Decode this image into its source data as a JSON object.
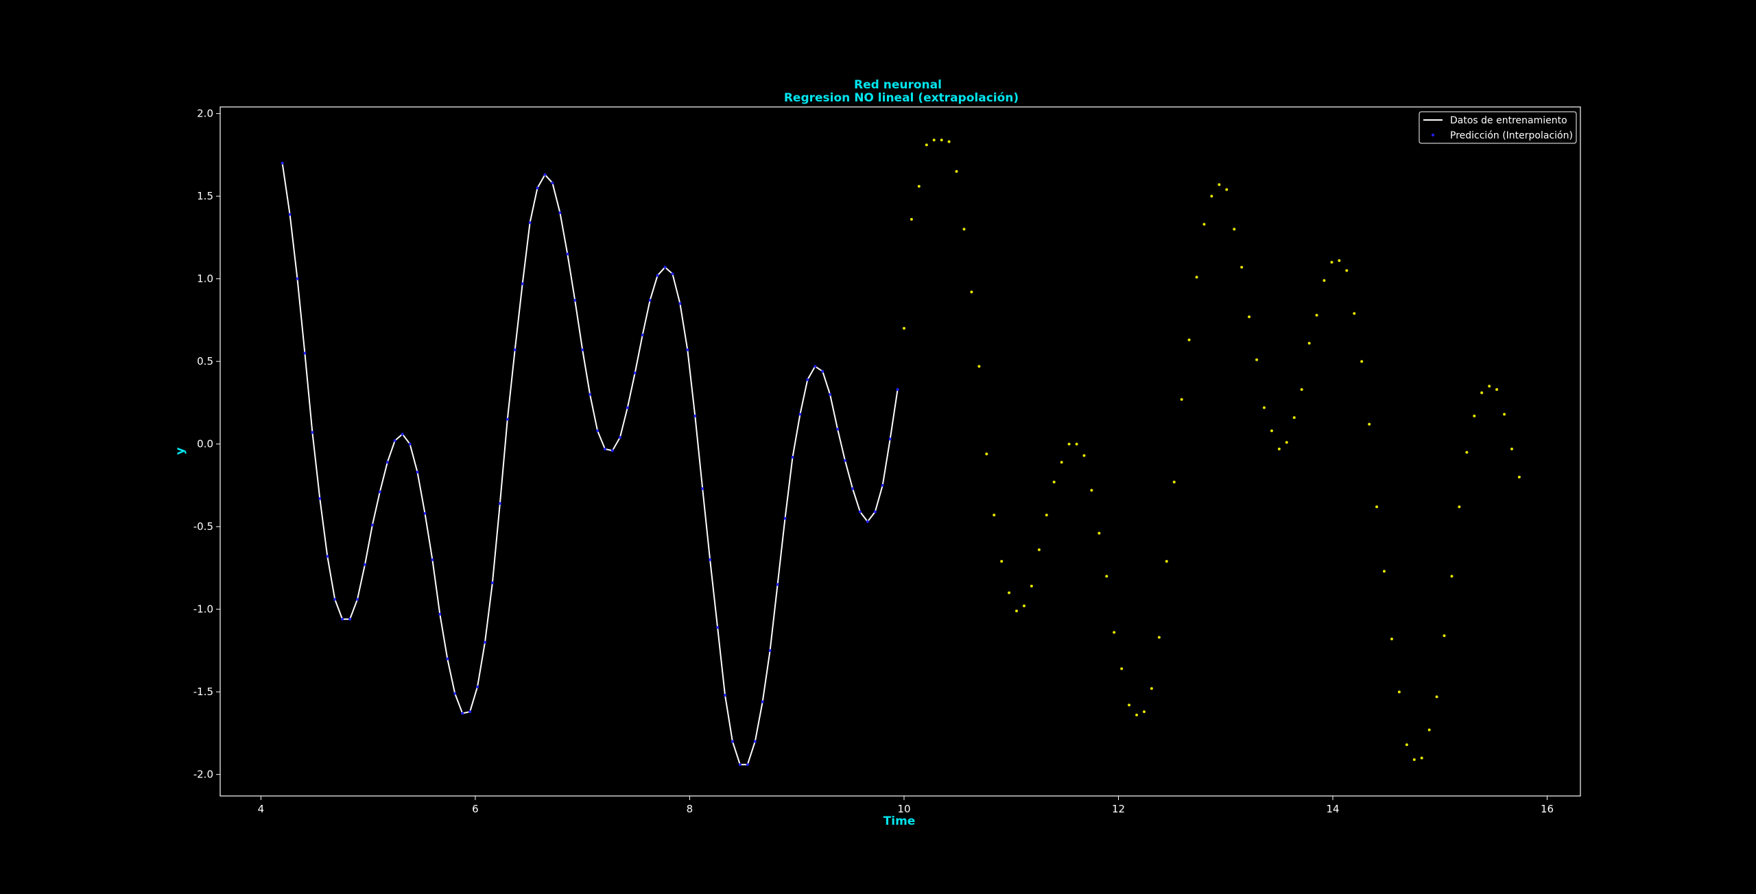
{
  "chart_data": {
    "type": "line",
    "title": "Red neuronal",
    "subtitle": "Regresion NO lineal (extrapolación)",
    "xlabel": "Time",
    "ylabel": "y",
    "xlim": [
      3.62,
      16.31
    ],
    "ylim": [
      -2.13,
      2.04
    ],
    "xticks": [
      4,
      6,
      8,
      10,
      12,
      14,
      16
    ],
    "yticks": [
      2.0,
      1.5,
      1.0,
      0.5,
      0.0,
      -0.5,
      -1.0,
      -1.5,
      -2.0
    ],
    "grid": false,
    "legend_position": "top-right",
    "series": [
      {
        "name": "Datos de entrenamiento",
        "kind": "line",
        "color": "#ffffff",
        "x": [
          4.2,
          4.27,
          4.34,
          4.41,
          4.48,
          4.55,
          4.62,
          4.69,
          4.76,
          4.83,
          4.9,
          4.97,
          5.04,
          5.11,
          5.18,
          5.25,
          5.32,
          5.39,
          5.46,
          5.53,
          5.6,
          5.67,
          5.74,
          5.81,
          5.88,
          5.95,
          6.02,
          6.09,
          6.16,
          6.23,
          6.3,
          6.37,
          6.44,
          6.51,
          6.58,
          6.65,
          6.72,
          6.79,
          6.86,
          6.93,
          7.0,
          7.07,
          7.14,
          7.21,
          7.28,
          7.35,
          7.42,
          7.49,
          7.56,
          7.63,
          7.7,
          7.77,
          7.84,
          7.91,
          7.98,
          8.05,
          8.12,
          8.19,
          8.26,
          8.33,
          8.4,
          8.47,
          8.54,
          8.61,
          8.68,
          8.75,
          8.82,
          8.89,
          8.96,
          9.03,
          9.1,
          9.17,
          9.24,
          9.31,
          9.38,
          9.45,
          9.52,
          9.59,
          9.66,
          9.73,
          9.8,
          9.87,
          9.94
        ],
        "y": [
          1.7,
          1.39,
          1.0,
          0.55,
          0.07,
          -0.33,
          -0.68,
          -0.94,
          -1.06,
          -1.06,
          -0.94,
          -0.73,
          -0.49,
          -0.29,
          -0.11,
          0.02,
          0.06,
          0.0,
          -0.17,
          -0.42,
          -0.7,
          -1.03,
          -1.3,
          -1.51,
          -1.63,
          -1.62,
          -1.47,
          -1.2,
          -0.84,
          -0.36,
          0.15,
          0.57,
          0.97,
          1.34,
          1.55,
          1.63,
          1.58,
          1.4,
          1.15,
          0.87,
          0.57,
          0.3,
          0.08,
          -0.03,
          -0.04,
          0.04,
          0.22,
          0.43,
          0.66,
          0.87,
          1.02,
          1.07,
          1.03,
          0.85,
          0.57,
          0.17,
          -0.27,
          -0.7,
          -1.11,
          -1.52,
          -1.8,
          -1.94,
          -1.94,
          -1.8,
          -1.56,
          -1.25,
          -0.85,
          -0.45,
          -0.08,
          0.18,
          0.39,
          0.47,
          0.44,
          0.3,
          0.09,
          -0.1,
          -0.27,
          -0.41,
          -0.47,
          -0.41,
          -0.25,
          0.03,
          0.33
        ]
      },
      {
        "name": "Predicción (Interpolación)",
        "kind": "scatter",
        "color": "#2222ff",
        "x": [
          4.2,
          4.27,
          4.34,
          4.41,
          4.48,
          4.55,
          4.62,
          4.69,
          4.76,
          4.83,
          4.9,
          4.97,
          5.04,
          5.11,
          5.18,
          5.25,
          5.32,
          5.39,
          5.46,
          5.53,
          5.6,
          5.67,
          5.74,
          5.81,
          5.88,
          5.95,
          6.02,
          6.09,
          6.16,
          6.23,
          6.3,
          6.37,
          6.44,
          6.51,
          6.58,
          6.65,
          6.72,
          6.79,
          6.86,
          6.93,
          7.0,
          7.07,
          7.14,
          7.21,
          7.28,
          7.35,
          7.42,
          7.49,
          7.56,
          7.63,
          7.7,
          7.77,
          7.84,
          7.91,
          7.98,
          8.05,
          8.12,
          8.19,
          8.26,
          8.33,
          8.4,
          8.47,
          8.54,
          8.61,
          8.68,
          8.75,
          8.82,
          8.89,
          8.96,
          9.03,
          9.1,
          9.17,
          9.24,
          9.31,
          9.38,
          9.45,
          9.52,
          9.59,
          9.66,
          9.73,
          9.8,
          9.87,
          9.94
        ],
        "y": [
          1.7,
          1.39,
          1.0,
          0.55,
          0.07,
          -0.33,
          -0.68,
          -0.94,
          -1.06,
          -1.06,
          -0.94,
          -0.73,
          -0.49,
          -0.29,
          -0.11,
          0.02,
          0.06,
          0.0,
          -0.17,
          -0.42,
          -0.7,
          -1.03,
          -1.3,
          -1.51,
          -1.63,
          -1.62,
          -1.47,
          -1.2,
          -0.84,
          -0.36,
          0.15,
          0.57,
          0.97,
          1.34,
          1.55,
          1.63,
          1.58,
          1.4,
          1.15,
          0.87,
          0.57,
          0.3,
          0.08,
          -0.03,
          -0.04,
          0.04,
          0.22,
          0.43,
          0.66,
          0.87,
          1.02,
          1.07,
          1.03,
          0.85,
          0.57,
          0.17,
          -0.27,
          -0.7,
          -1.11,
          -1.52,
          -1.8,
          -1.94,
          -1.94,
          -1.8,
          -1.56,
          -1.25,
          -0.85,
          -0.45,
          -0.08,
          0.18,
          0.39,
          0.47,
          0.44,
          0.3,
          0.09,
          -0.1,
          -0.27,
          -0.41,
          -0.47,
          -0.41,
          -0.25,
          0.03,
          0.33
        ]
      },
      {
        "kind": "scatter",
        "color": "#e6e600",
        "x": [
          10.0,
          10.07,
          10.14,
          10.21,
          10.28,
          10.35,
          10.42,
          10.49,
          10.56,
          10.63,
          10.7,
          10.77,
          10.84,
          10.91,
          10.98,
          11.05,
          11.12,
          11.19,
          11.26,
          11.33,
          11.4,
          11.47,
          11.54,
          11.61,
          11.68,
          11.75,
          11.82,
          11.89,
          11.96,
          12.03,
          12.1,
          12.17,
          12.24,
          12.31,
          12.38,
          12.45,
          12.52,
          12.59,
          12.66,
          12.73,
          12.8,
          12.87,
          12.94,
          13.01,
          13.08,
          13.15,
          13.22,
          13.29,
          13.36,
          13.43,
          13.5,
          13.57,
          13.64,
          13.71,
          13.78,
          13.85,
          13.92,
          13.99,
          14.06,
          14.13,
          14.2,
          14.27,
          14.34,
          14.41,
          14.48,
          14.55,
          14.62,
          14.69,
          14.76,
          14.83,
          14.9,
          14.97,
          15.04,
          15.11,
          15.18,
          15.25,
          15.32,
          15.39,
          15.46,
          15.53,
          15.6,
          15.67,
          15.74
        ],
        "y": [
          0.7,
          1.36,
          1.56,
          1.81,
          1.84,
          1.84,
          1.83,
          1.65,
          1.3,
          0.92,
          0.47,
          -0.06,
          -0.43,
          -0.71,
          -0.9,
          -1.01,
          -0.98,
          -0.86,
          -0.64,
          -0.43,
          -0.23,
          -0.11,
          0.0,
          0.0,
          -0.07,
          -0.28,
          -0.54,
          -0.8,
          -1.14,
          -1.36,
          -1.58,
          -1.64,
          -1.62,
          -1.48,
          -1.17,
          -0.71,
          -0.23,
          0.27,
          0.63,
          1.01,
          1.33,
          1.5,
          1.57,
          1.54,
          1.3,
          1.07,
          0.77,
          0.51,
          0.22,
          0.08,
          -0.03,
          0.01,
          0.16,
          0.33,
          0.61,
          0.78,
          0.99,
          1.1,
          1.11,
          1.05,
          0.79,
          0.5,
          0.12,
          -0.38,
          -0.77,
          -1.18,
          -1.5,
          -1.82,
          -1.91,
          -1.9,
          -1.73,
          -1.53,
          -1.16,
          -0.8,
          -0.38,
          -0.05,
          0.17,
          0.31,
          0.35,
          0.33,
          0.18,
          -0.03,
          -0.2
        ]
      }
    ]
  }
}
